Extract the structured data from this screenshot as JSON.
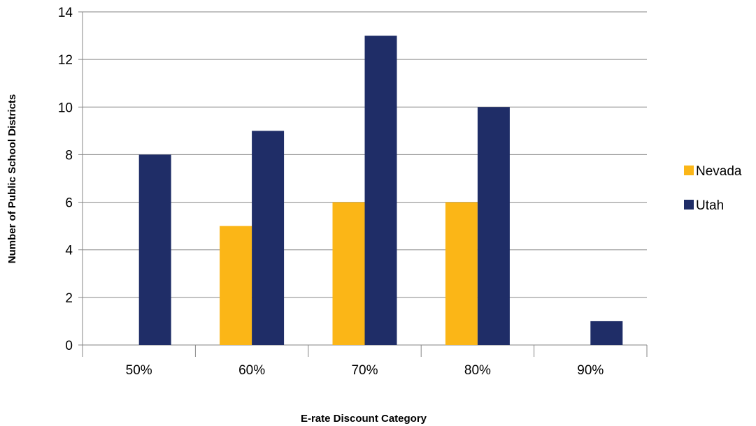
{
  "chart_data": {
    "type": "bar",
    "title": "",
    "xlabel": "E-rate Discount Category",
    "ylabel": "Number of Public School Districts",
    "categories": [
      "50%",
      "60%",
      "70%",
      "80%",
      "90%"
    ],
    "series": [
      {
        "name": "Nevada",
        "values": [
          0,
          5,
          6,
          6,
          0
        ],
        "color": "#FBB617"
      },
      {
        "name": "Utah",
        "values": [
          8,
          9,
          13,
          10,
          1
        ],
        "color": "#1F2D67"
      }
    ],
    "ylim": [
      0,
      14
    ],
    "yticks": [
      0,
      2,
      4,
      6,
      8,
      10,
      12,
      14
    ],
    "grid": true,
    "legend_position": "right"
  }
}
